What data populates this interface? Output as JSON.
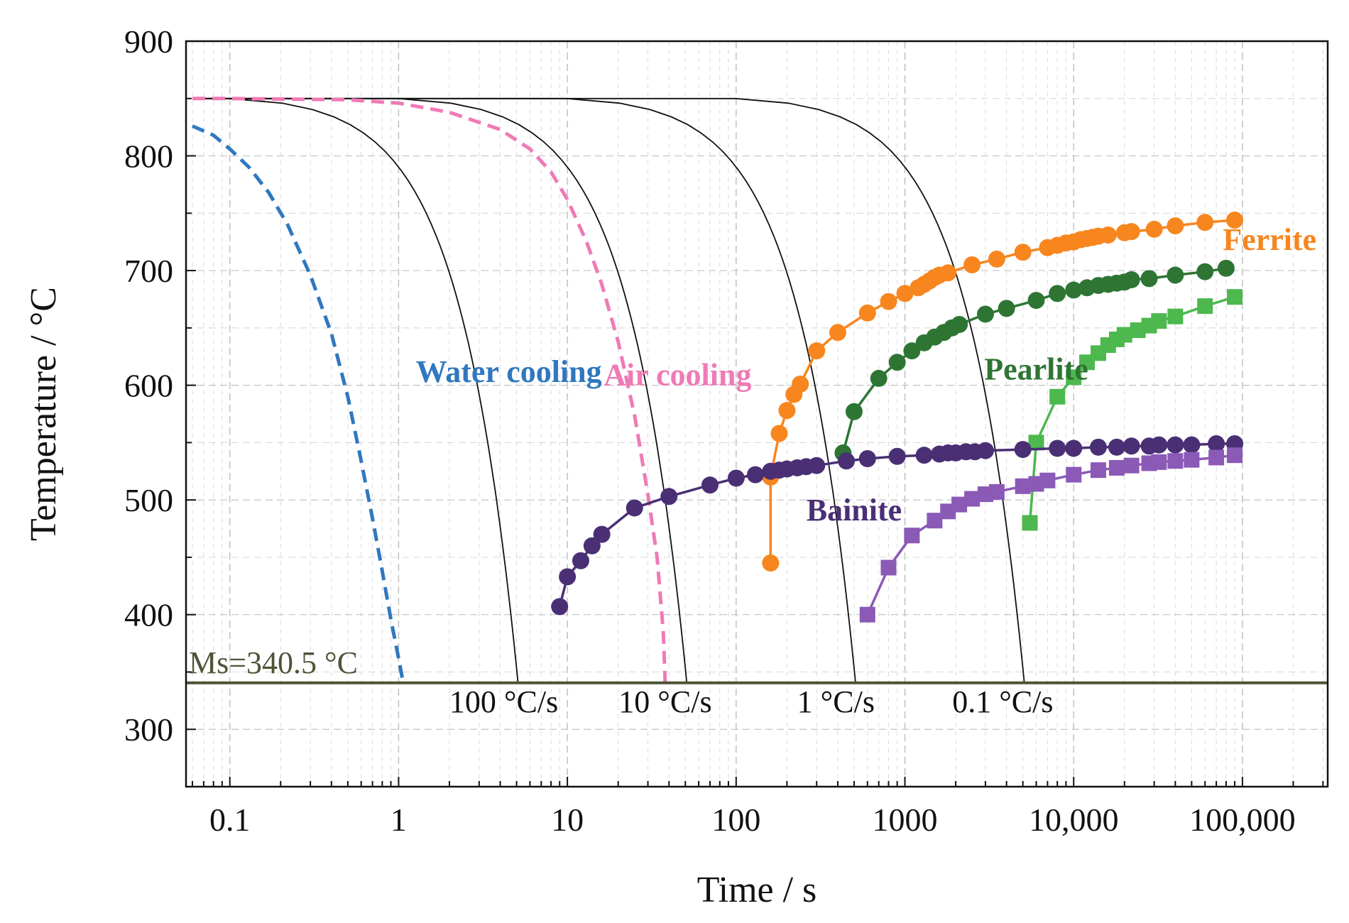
{
  "chart_data": {
    "type": "line",
    "xlabel": "Time / s",
    "ylabel": "Temperature / °C",
    "x_scale": "log",
    "xlim": [
      0.055,
      320000
    ],
    "ylim": [
      250,
      900
    ],
    "grid": true,
    "x_ticks": [
      {
        "value": 0.1,
        "label": "0.1"
      },
      {
        "value": 1,
        "label": "1"
      },
      {
        "value": 10,
        "label": "10"
      },
      {
        "value": 100,
        "label": "100"
      },
      {
        "value": 1000,
        "label": "1000"
      },
      {
        "value": 10000,
        "label": "10,000"
      },
      {
        "value": 100000,
        "label": "100,000"
      }
    ],
    "y_ticks": [
      {
        "value": 300,
        "label": "300"
      },
      {
        "value": 400,
        "label": "400"
      },
      {
        "value": 500,
        "label": "500"
      },
      {
        "value": 600,
        "label": "600"
      },
      {
        "value": 700,
        "label": "700"
      },
      {
        "value": 800,
        "label": "800"
      },
      {
        "value": 900,
        "label": "900"
      }
    ],
    "ms_line": {
      "value": 340.5,
      "label": "Ms=340.5 °C",
      "color": "#4d5437"
    },
    "cooling_curves": [
      {
        "label": "100 °C/s",
        "t0": 0.1,
        "t_end": 5.1,
        "label_x": 4.2,
        "label_y": 315
      },
      {
        "label": "10 °C/s",
        "t0": 1,
        "t_end": 51,
        "label_x": 38,
        "label_y": 315
      },
      {
        "label": "1 °C/s",
        "t0": 10,
        "t_end": 510,
        "label_x": 390,
        "label_y": 315
      },
      {
        "label": "0.1 °C/s",
        "t0": 100,
        "t_end": 5100,
        "label_x": 3800,
        "label_y": 315
      }
    ],
    "special_curves": [
      {
        "label": "Water cooling",
        "color": "#2f78bf",
        "label_x": 4.5,
        "label_y": 603,
        "points": [
          [
            0.06,
            826
          ],
          [
            0.08,
            818
          ],
          [
            0.1,
            806
          ],
          [
            0.13,
            790
          ],
          [
            0.17,
            768
          ],
          [
            0.22,
            740
          ],
          [
            0.3,
            696
          ],
          [
            0.4,
            645
          ],
          [
            0.5,
            590
          ],
          [
            0.6,
            534
          ],
          [
            0.7,
            484
          ],
          [
            0.8,
            438
          ],
          [
            0.9,
            396
          ],
          [
            1.0,
            362
          ],
          [
            1.05,
            345
          ]
        ]
      },
      {
        "label": "Air cooling",
        "color": "#ef7ab6",
        "label_x": 45,
        "label_y": 600,
        "points": [
          [
            0.06,
            850
          ],
          [
            0.1,
            850
          ],
          [
            0.5,
            849
          ],
          [
            1,
            846
          ],
          [
            2,
            838
          ],
          [
            4,
            823
          ],
          [
            6,
            806
          ],
          [
            8,
            786
          ],
          [
            10,
            762
          ],
          [
            13,
            725
          ],
          [
            16,
            688
          ],
          [
            20,
            638
          ],
          [
            25,
            574
          ],
          [
            30,
            505
          ],
          [
            34,
            450
          ],
          [
            37,
            385
          ],
          [
            38,
            340
          ]
        ]
      }
    ],
    "series": [
      {
        "name": "Ferrite",
        "color": "#f7861f",
        "marker": "circle",
        "label_x": 145000,
        "label_y": 718,
        "points": [
          [
            160,
            445
          ],
          [
            160,
            520
          ],
          [
            180,
            558
          ],
          [
            200,
            578
          ],
          [
            220,
            592
          ],
          [
            240,
            601
          ],
          [
            300,
            630
          ],
          [
            400,
            646
          ],
          [
            600,
            663
          ],
          [
            800,
            673
          ],
          [
            1000,
            680
          ],
          [
            1200,
            685
          ],
          [
            1300,
            688
          ],
          [
            1400,
            691
          ],
          [
            1500,
            694
          ],
          [
            1600,
            696
          ],
          [
            1800,
            698
          ],
          [
            2500,
            705
          ],
          [
            3500,
            710
          ],
          [
            5000,
            716
          ],
          [
            7000,
            720
          ],
          [
            8000,
            722
          ],
          [
            9000,
            724
          ],
          [
            10000,
            725
          ],
          [
            11000,
            727
          ],
          [
            12000,
            728
          ],
          [
            13000,
            729
          ],
          [
            14000,
            730
          ],
          [
            16000,
            731
          ],
          [
            20000,
            733
          ],
          [
            22000,
            734
          ],
          [
            30000,
            736
          ],
          [
            40000,
            739
          ],
          [
            60000,
            742
          ],
          [
            90000,
            744
          ]
        ]
      },
      {
        "name": "Pearlite",
        "color": "#2e7534",
        "marker": "circle",
        "label_x": 6000,
        "label_y": 605,
        "points": [
          [
            430,
            541
          ],
          [
            500,
            577
          ],
          [
            700,
            606
          ],
          [
            900,
            620
          ],
          [
            1100,
            630
          ],
          [
            1300,
            637
          ],
          [
            1500,
            642
          ],
          [
            1700,
            646
          ],
          [
            1900,
            650
          ],
          [
            2100,
            653
          ],
          [
            3000,
            662
          ],
          [
            4000,
            667
          ],
          [
            6000,
            674
          ],
          [
            8000,
            680
          ],
          [
            10000,
            683
          ],
          [
            12000,
            685
          ],
          [
            14000,
            687
          ],
          [
            16000,
            688
          ],
          [
            18000,
            689
          ],
          [
            20000,
            690
          ],
          [
            22000,
            692
          ],
          [
            28000,
            693
          ],
          [
            40000,
            696
          ],
          [
            60000,
            699
          ],
          [
            80000,
            702
          ]
        ]
      },
      {
        "name": "Pearlite",
        "color": "#4cb84e",
        "marker": "square",
        "label_x": null,
        "label_y": null,
        "points": [
          [
            5500,
            480
          ],
          [
            6000,
            550
          ],
          [
            8000,
            590
          ],
          [
            10000,
            607
          ],
          [
            12000,
            620
          ],
          [
            14000,
            628
          ],
          [
            16000,
            635
          ],
          [
            18000,
            640
          ],
          [
            20000,
            644
          ],
          [
            24000,
            648
          ],
          [
            28000,
            652
          ],
          [
            32000,
            656
          ],
          [
            40000,
            660
          ],
          [
            60000,
            669
          ],
          [
            90000,
            677
          ]
        ]
      },
      {
        "name": "Bainite",
        "color": "#4a2f75",
        "marker": "circle",
        "label_x": 500,
        "label_y": 482,
        "points": [
          [
            9,
            407
          ],
          [
            10,
            433
          ],
          [
            12,
            447
          ],
          [
            14,
            460
          ],
          [
            16,
            470
          ],
          [
            25,
            493
          ],
          [
            40,
            503
          ],
          [
            70,
            513
          ],
          [
            100,
            519
          ],
          [
            130,
            522
          ],
          [
            160,
            525
          ],
          [
            180,
            526
          ],
          [
            200,
            527
          ],
          [
            230,
            528
          ],
          [
            260,
            529
          ],
          [
            300,
            530
          ],
          [
            450,
            534
          ],
          [
            600,
            536
          ],
          [
            900,
            538
          ],
          [
            1300,
            539
          ],
          [
            1600,
            540
          ],
          [
            1800,
            541
          ],
          [
            2000,
            541
          ],
          [
            2300,
            542
          ],
          [
            2600,
            542
          ],
          [
            3000,
            543
          ],
          [
            5000,
            544
          ],
          [
            8000,
            545
          ],
          [
            10000,
            545
          ],
          [
            14000,
            546
          ],
          [
            18000,
            546
          ],
          [
            22000,
            547
          ],
          [
            28000,
            547
          ],
          [
            32000,
            548
          ],
          [
            40000,
            548
          ],
          [
            50000,
            548
          ],
          [
            70000,
            549
          ],
          [
            90000,
            549
          ]
        ]
      },
      {
        "name": "Bainite",
        "color": "#8b59b6",
        "marker": "square",
        "label_x": null,
        "label_y": null,
        "points": [
          [
            600,
            400
          ],
          [
            800,
            441
          ],
          [
            1100,
            469
          ],
          [
            1500,
            482
          ],
          [
            1800,
            490
          ],
          [
            2100,
            496
          ],
          [
            2500,
            501
          ],
          [
            3000,
            505
          ],
          [
            3500,
            507
          ],
          [
            5000,
            512
          ],
          [
            6000,
            514
          ],
          [
            7000,
            517
          ],
          [
            10000,
            522
          ],
          [
            14000,
            526
          ],
          [
            18000,
            528
          ],
          [
            22000,
            530
          ],
          [
            28000,
            532
          ],
          [
            32000,
            533
          ],
          [
            40000,
            534
          ],
          [
            50000,
            535
          ],
          [
            70000,
            537
          ],
          [
            90000,
            539
          ]
        ]
      }
    ]
  }
}
